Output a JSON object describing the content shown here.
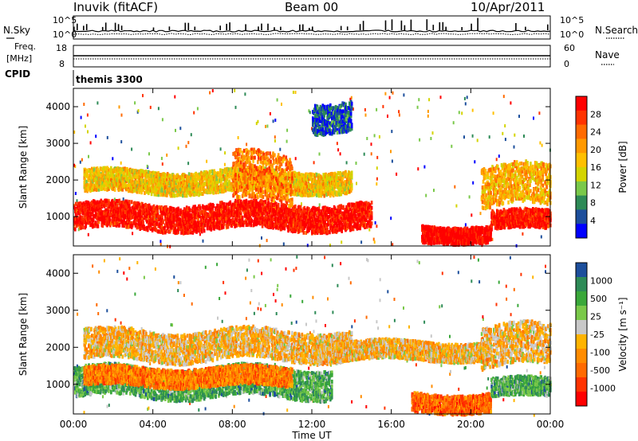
{
  "header": {
    "station": "Inuvik (fitACF)",
    "beam": "Beam 00",
    "date": "10/Apr/2011"
  },
  "noise_panel": {
    "left_label": "N.Sky",
    "right_label": "N.Search",
    "left_ticks": [
      "10^5",
      "10^0"
    ],
    "right_ticks": [
      "10^5",
      "10^0"
    ]
  },
  "freq_panel": {
    "left_label_1": "Freq.",
    "left_label_2": "[MHz]",
    "right_label": "Nave",
    "left_ticks": [
      "18",
      "8"
    ],
    "right_ticks": [
      "60",
      "0"
    ]
  },
  "cpid": {
    "label": "CPID",
    "value": "themis 3300"
  },
  "chart_data": [
    {
      "type": "heatmap",
      "ylabel": "Slant Range [km]",
      "xlabel": "Time UT",
      "xticks": [
        "00:00",
        "04:00",
        "08:00",
        "12:00",
        "16:00",
        "20:00",
        "00:00"
      ],
      "yticks": [
        "1000",
        "2000",
        "3000",
        "4000"
      ],
      "ylim": [
        200,
        4500
      ],
      "colorbar": {
        "label": "Power [dB]",
        "ticks": [
          "28",
          "24",
          "20",
          "16",
          "12",
          "8",
          "4"
        ],
        "colors": [
          "#ff0000",
          "#ff3300",
          "#ff6a00",
          "#ff9900",
          "#ffc000",
          "#d4d400",
          "#7ac94a",
          "#2e8b57",
          "#1d4f9c",
          "#0000ff"
        ]
      },
      "bands": [
        {
          "t0": 0.0,
          "t1": 15.0,
          "r0": 700,
          "r1": 1400,
          "level": 0.95
        },
        {
          "t0": 0.5,
          "t1": 14.0,
          "r0": 1700,
          "r1": 2300,
          "level": 0.55
        },
        {
          "t0": 8.0,
          "t1": 11.0,
          "r0": 1400,
          "r1": 2700,
          "level": 0.7
        },
        {
          "t0": 17.5,
          "t1": 21.0,
          "r0": 350,
          "r1": 800,
          "level": 1.0
        },
        {
          "t0": 21.0,
          "t1": 24.0,
          "r0": 700,
          "r1": 1200,
          "level": 0.95
        },
        {
          "t0": 20.5,
          "t1": 24.0,
          "r0": 1300,
          "r1": 2400,
          "level": 0.6
        },
        {
          "t0": 12.0,
          "t1": 14.0,
          "r0": 3400,
          "r1": 4200,
          "level": 0.15
        }
      ]
    },
    {
      "type": "heatmap",
      "ylabel": "Slant Range [km]",
      "xlabel": "Time UT",
      "xticks": [
        "00:00",
        "04:00",
        "08:00",
        "12:00",
        "16:00",
        "20:00",
        "00:00"
      ],
      "yticks": [
        "1000",
        "2000",
        "3000",
        "4000"
      ],
      "ylim": [
        200,
        4500
      ],
      "colorbar": {
        "label": "Velocity [m s⁻¹]",
        "ticks": [
          "1000",
          "500",
          "25",
          "-25",
          "-100",
          "-500",
          "-1000"
        ],
        "colors": [
          "#1d4f9c",
          "#2e8b57",
          "#3aa83a",
          "#7ac94a",
          "#c8c8c8",
          "#ffb400",
          "#ff8c00",
          "#ff6a00",
          "#ff3300",
          "#ff0000"
        ]
      },
      "bands": [
        {
          "t0": 0.0,
          "t1": 13.0,
          "r0": 700,
          "r1": 1500,
          "level": 0.75
        },
        {
          "t0": 0.5,
          "t1": 11.0,
          "r0": 1000,
          "r1": 1500,
          "level": 0.3
        },
        {
          "t0": 0.5,
          "t1": 14.0,
          "r0": 1700,
          "r1": 2500,
          "level": 0.45
        },
        {
          "t0": 12.0,
          "t1": 21.0,
          "r0": 1700,
          "r1": 2200,
          "level": 0.45
        },
        {
          "t0": 17.0,
          "t1": 21.0,
          "r0": 300,
          "r1": 800,
          "level": 0.25
        },
        {
          "t0": 21.0,
          "t1": 24.0,
          "r0": 700,
          "r1": 1200,
          "level": 0.75
        },
        {
          "t0": 20.5,
          "t1": 24.0,
          "r0": 1500,
          "r1": 2600,
          "level": 0.45
        }
      ]
    }
  ]
}
